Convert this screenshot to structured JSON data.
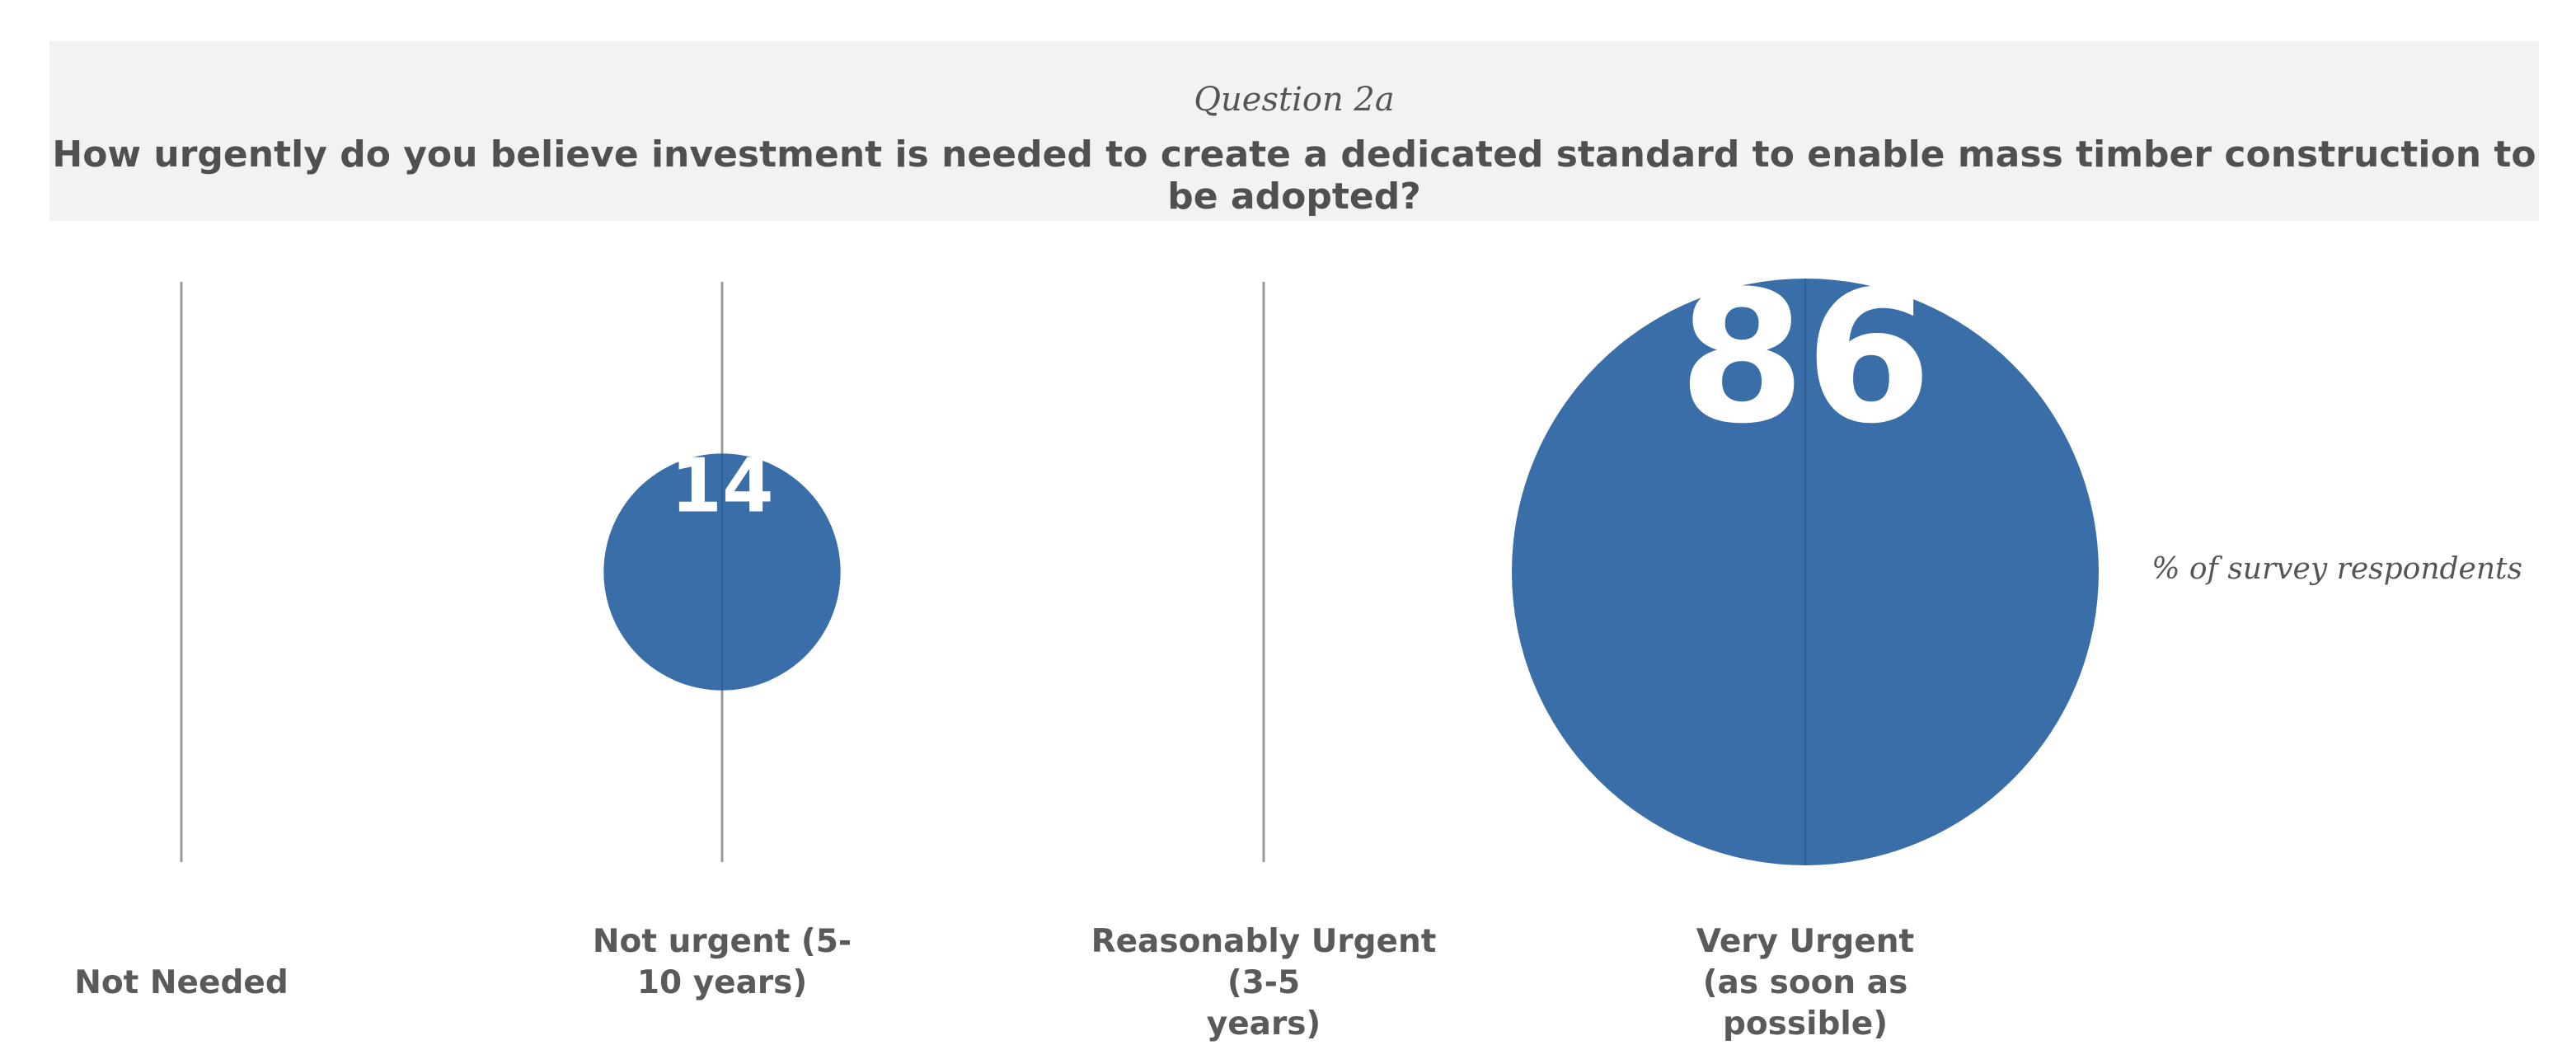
{
  "chart_data": {
    "type": "bubble",
    "subtitle": "Question 2a",
    "title": "How urgently do you believe investment is needed to create a dedicated standard to enable mass timber construction to be adopted?",
    "unit_label": "% of survey respondents",
    "categories": [
      "Not Needed",
      "Not urgent (5-10 years)",
      "Reasonably Urgent (3-5 years)",
      "Very Urgent (as soon as possible)"
    ],
    "category_lines": [
      [
        "Not Needed"
      ],
      [
        "Not urgent (5-",
        "10 years)"
      ],
      [
        "Reasonably Urgent (3-5",
        "years)"
      ],
      [
        "Very Urgent",
        "(as soon as possible)"
      ]
    ],
    "values": [
      0,
      14,
      0,
      86
    ],
    "value_labels": [
      "",
      "14",
      "",
      "86"
    ],
    "bubble_color": "#3a6ea8",
    "line_color": "#999999",
    "label_color": "#ffffff"
  }
}
